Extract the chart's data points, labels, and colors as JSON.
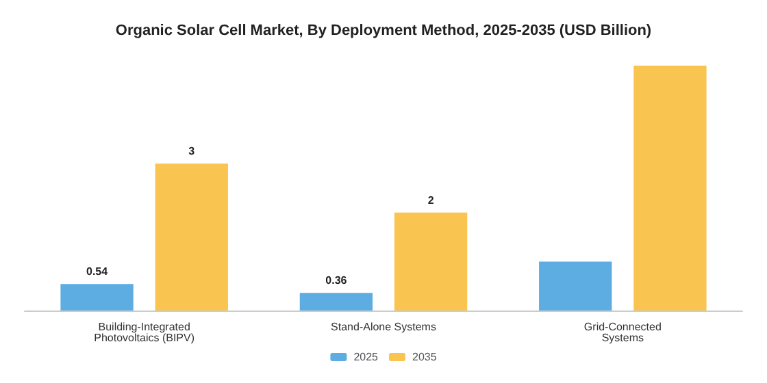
{
  "chart_data": {
    "type": "bar",
    "title": "Organic Solar Cell Market, By Deployment Method, 2025-2035 (USD Billion)",
    "categories": [
      "Building-Integrated\nPhotovoltaics (BIPV)",
      "Stand-Alone Systems",
      "Grid-Connected\nSystems"
    ],
    "series": [
      {
        "name": "2025",
        "color": "#5dade2",
        "values": [
          0.54,
          0.36,
          1.0
        ],
        "value_labels": [
          "0.54",
          "0.36",
          null
        ]
      },
      {
        "name": "2035",
        "color": "#f9c44f",
        "values": [
          3,
          2,
          5.0
        ],
        "value_labels": [
          "3",
          "2",
          null
        ]
      }
    ],
    "legend": "bottom"
  }
}
